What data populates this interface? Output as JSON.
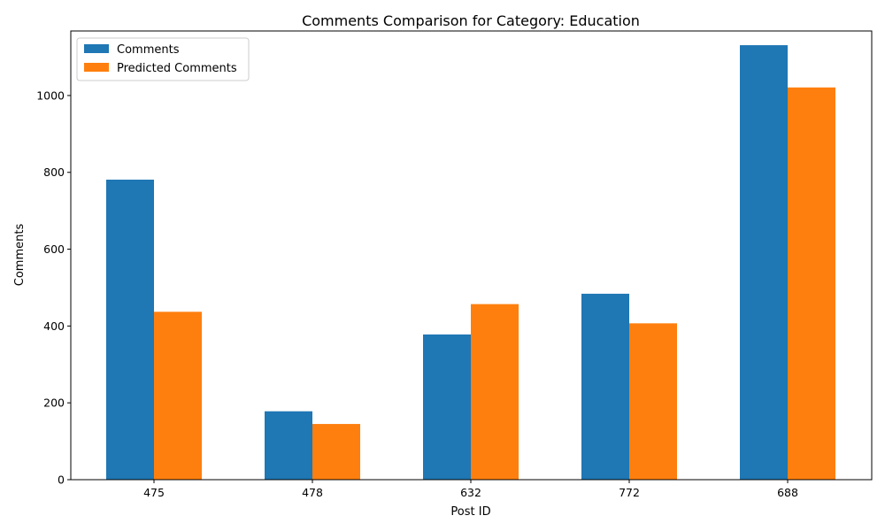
{
  "chart_data": {
    "type": "bar",
    "title": "Comments Comparison for Category: Education",
    "xlabel": "Post ID",
    "ylabel": "Comments",
    "categories": [
      "475",
      "478",
      "632",
      "772",
      "688"
    ],
    "series": [
      {
        "name": "Comments",
        "values": [
          781,
          178,
          378,
          484,
          1131
        ],
        "color": "#1f77b4"
      },
      {
        "name": "Predicted Comments",
        "values": [
          437,
          145,
          457,
          407,
          1021
        ],
        "color": "#ff7f0e"
      }
    ],
    "ylim": [
      0,
      1168
    ],
    "yticks": [
      0,
      200,
      400,
      600,
      800,
      1000
    ],
    "grid": false,
    "legend_position": "top-left"
  }
}
